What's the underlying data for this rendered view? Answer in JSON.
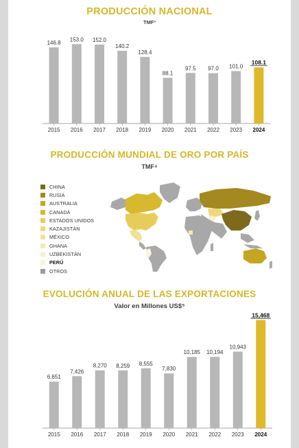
{
  "chart_data": [
    {
      "type": "bar",
      "title": "PRODUCCIÓN NACIONAL",
      "subtitle": "TMF³",
      "categories": [
        "2015",
        "2016",
        "2017",
        "2018",
        "2019",
        "2020",
        "2021",
        "2022",
        "2023",
        "2024"
      ],
      "values": [
        146.8,
        153.0,
        152.0,
        140.2,
        128.4,
        88.1,
        97.5,
        97.0,
        101.0,
        108.1
      ],
      "labels": [
        "146.8",
        "153.0",
        "152.0",
        "140.2",
        "128.4",
        "88.1",
        "97.5",
        "97.0",
        "101.0",
        "108.1"
      ],
      "highlight_index": 9,
      "ylim": [
        0,
        160
      ],
      "grid": false
    },
    {
      "type": "bar",
      "title": "EVOLUCIÓN ANUAL DE LAS EXPORTACIONES",
      "subtitle": "Valor en Millones US$⁵",
      "categories": [
        "2015",
        "2016",
        "2017",
        "2018",
        "2019",
        "2020",
        "2021",
        "2022",
        "2023",
        "2024"
      ],
      "values": [
        6651,
        7426,
        8270,
        8259,
        8555,
        7830,
        10185,
        10194,
        10943,
        15468
      ],
      "labels": [
        "6,651",
        "7,426",
        "8,270",
        "8,259",
        "8,555",
        "7,830",
        "10,185",
        "10,194",
        "10,943",
        "15,468"
      ],
      "highlight_index": 9,
      "ylim": [
        0,
        16000
      ],
      "grid": false
    }
  ],
  "map_section": {
    "title": "PRODUCCIÓN MUNDIAL DE ORO POR PAÍS",
    "subtitle": "TMF⁴",
    "legend": [
      {
        "label": "CHINA",
        "color": "#7d6a1d"
      },
      {
        "label": "RUSIA",
        "color": "#a3891f"
      },
      {
        "label": "AUSTRALIA",
        "color": "#c4a623"
      },
      {
        "label": "CANADÁ",
        "color": "#d6b92f"
      },
      {
        "label": "ESTADOS UNIDOS",
        "color": "#e6cd5a"
      },
      {
        "label": "KAZAJISTÁN",
        "color": "#edd97d"
      },
      {
        "label": "MÉXICO",
        "color": "#f1e199"
      },
      {
        "label": "GHANA",
        "color": "#f5e9b4"
      },
      {
        "label": "UZBEKISTÁN",
        "color": "#f8efcb"
      },
      {
        "label": "PERÚ",
        "color": "#fbf4dc"
      },
      {
        "label": "OTROS",
        "color": "#9b9b9b"
      }
    ]
  },
  "colors": {
    "accent": "#d4b72a",
    "bar": "#b7b7b7",
    "highlight": "#e0b92a"
  }
}
